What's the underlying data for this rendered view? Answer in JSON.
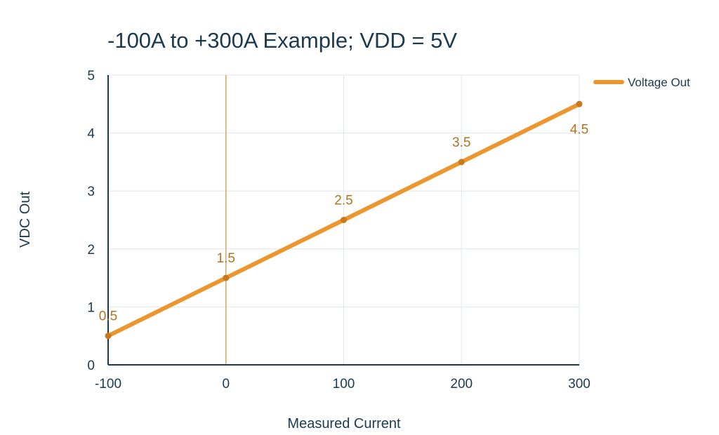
{
  "chart_data": {
    "type": "line",
    "title": "-100A to +300A Example; VDD = 5V",
    "xlabel": "Measured Current",
    "ylabel": "VDC Out",
    "xlim": [
      -100,
      300
    ],
    "ylim": [
      0,
      5
    ],
    "x_ticks": [
      "-100",
      "0",
      "100",
      "200",
      "300"
    ],
    "y_ticks": [
      "0",
      "1",
      "2",
      "3",
      "4",
      "5"
    ],
    "grid": true,
    "legend_position": "top-right",
    "reference_line_x": 0,
    "series": [
      {
        "name": "Voltage Out",
        "color": "#ec962f",
        "x": [
          -100,
          0,
          100,
          200,
          300
        ],
        "y": [
          0.5,
          1.5,
          2.5,
          3.5,
          4.5
        ],
        "labels": [
          "0.5",
          "1.5",
          "2.5",
          "3.5",
          "4.5"
        ]
      }
    ],
    "colors": {
      "text": "#1c3a4f",
      "axis": "#1c3a4f",
      "grid": "#dfe6ee",
      "reference_line": "#e0a55a",
      "point": "#c87a1c",
      "data_label": "#b07420"
    }
  }
}
